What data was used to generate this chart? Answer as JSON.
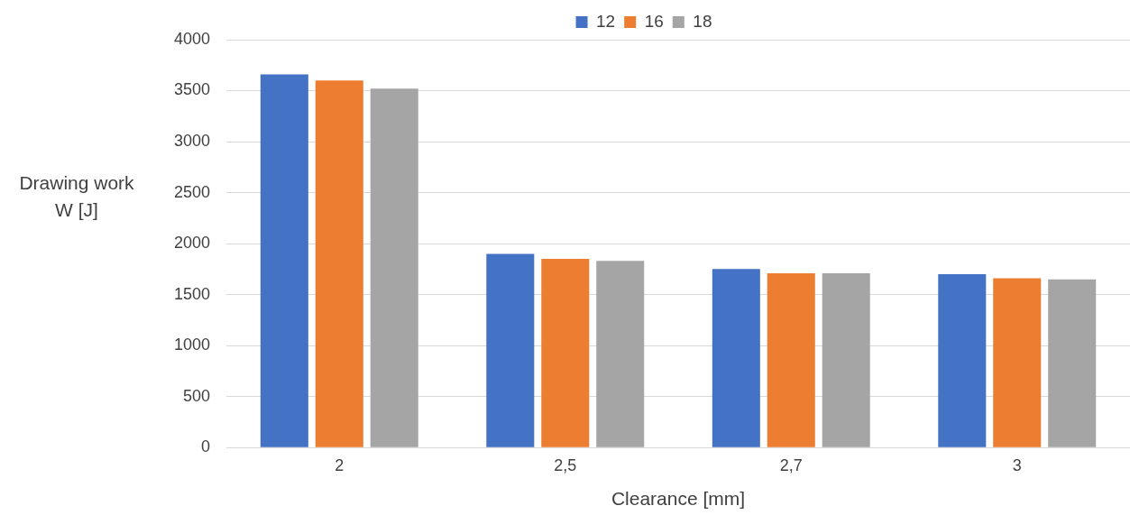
{
  "chart_data": {
    "type": "bar",
    "xlabel": "Clearance [mm]",
    "ylabel": "Drawing work W [J]",
    "categories": [
      "2",
      "2,5",
      "2,7",
      "3"
    ],
    "series": [
      {
        "name": "12",
        "color": "#4472c4",
        "values": [
          3660,
          1900,
          1750,
          1700
        ]
      },
      {
        "name": "16",
        "color": "#ed7d31",
        "values": [
          3600,
          1850,
          1710,
          1660
        ]
      },
      {
        "name": "18",
        "color": "#a5a5a5",
        "values": [
          3520,
          1830,
          1710,
          1650
        ]
      }
    ],
    "ylim": [
      0,
      4000
    ],
    "yticks": [
      0,
      500,
      1000,
      1500,
      2000,
      2500,
      3000,
      3500,
      4000
    ],
    "grid": "y",
    "legend": "top"
  }
}
